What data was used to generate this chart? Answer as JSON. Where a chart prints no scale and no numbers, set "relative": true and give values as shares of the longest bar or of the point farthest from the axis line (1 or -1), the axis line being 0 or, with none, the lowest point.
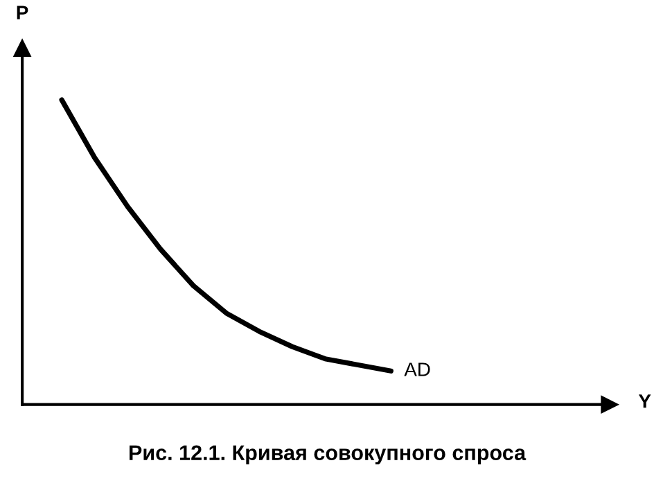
{
  "chart_data": {
    "type": "line",
    "relative": true,
    "title": "Рис. 12.1. Кривая совокупного спроса",
    "xlabel": "Y",
    "ylabel": "P",
    "categories": [
      null,
      null,
      null,
      null,
      null,
      null,
      null,
      null,
      null,
      null,
      null,
      null,
      null,
      null,
      null,
      null,
      null
    ],
    "series": [
      {
        "name": "AD",
        "color": "#000000",
        "values": [
          1,
          0.81,
          0.65,
          0.51,
          0.39,
          0.3,
          0.24,
          0.19,
          0.15,
          0.13,
          0.11,
          null,
          null,
          null,
          null,
          null,
          null
        ]
      }
    ],
    "grid": false,
    "legend": false
  }
}
